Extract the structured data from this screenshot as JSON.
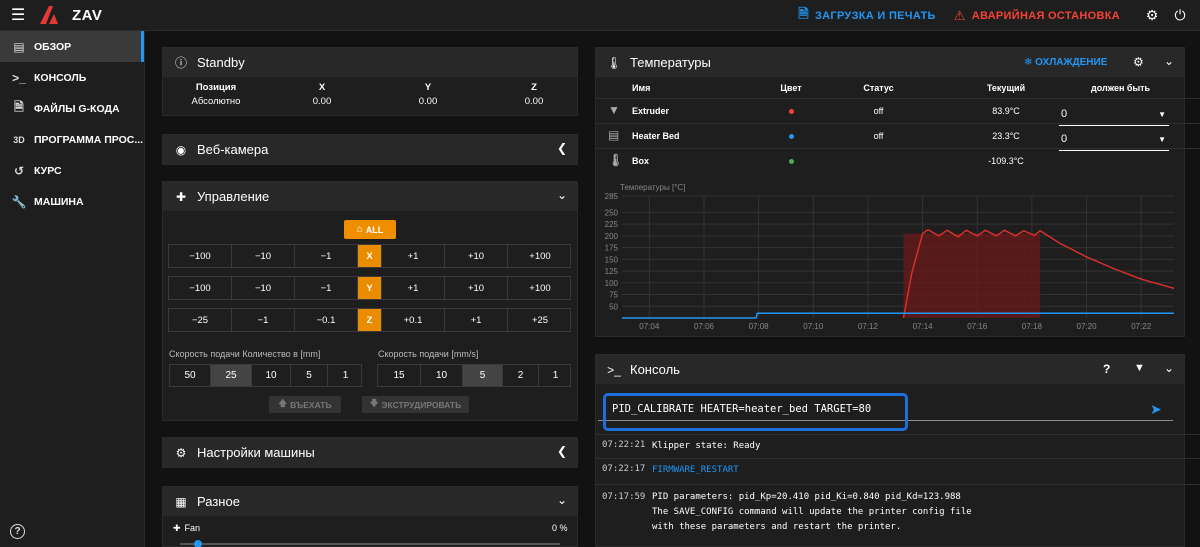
{
  "topbar": {
    "app_name": "ZAV",
    "upload_label": "ЗАГРУЗКА И ПЕЧАТЬ",
    "estop_label": "АВАРИЙНАЯ ОСТАНОВКА",
    "accent_blue": "#2196f3",
    "danger_red": "#f44336"
  },
  "sidebar": {
    "items": [
      {
        "label": "ОБЗОР",
        "icon": "monitor-icon",
        "active": true
      },
      {
        "label": "КОНСОЛЬ",
        "icon": "terminal-icon",
        "active": false
      },
      {
        "label": "ФАЙЛЫ G-КОДА",
        "icon": "file-icon",
        "active": false
      },
      {
        "label": "ПРОГРАММА ПРОС...",
        "icon": "3d-icon",
        "active": false
      },
      {
        "label": "КУРС",
        "icon": "history-icon",
        "active": false
      },
      {
        "label": "МАШИНА",
        "icon": "wrench-icon",
        "active": false
      }
    ]
  },
  "standby": {
    "title": "Standby",
    "headers": [
      "Позиция",
      "X",
      "Y",
      "Z"
    ],
    "row_label": "Абсолютно",
    "values": [
      "0.00",
      "0.00",
      "0.00"
    ]
  },
  "webcam": {
    "title": "Веб-камера"
  },
  "control": {
    "title": "Управление",
    "home_label": "ALL",
    "rows": [
      {
        "axis": "X",
        "cells": [
          "−100",
          "−10",
          "−1",
          "+1",
          "+10",
          "+100"
        ]
      },
      {
        "axis": "Y",
        "cells": [
          "−100",
          "−10",
          "−1",
          "+1",
          "+10",
          "+100"
        ]
      },
      {
        "axis": "Z",
        "cells": [
          "−25",
          "−1",
          "−0.1",
          "+0.1",
          "+1",
          "+25"
        ]
      }
    ],
    "feed_label_left": "Скорость подачи Количество в [mm]",
    "feed_label_right": "Скорость подачи [mm/s]",
    "amounts": [
      "50",
      "25",
      "10",
      "5",
      "1"
    ],
    "amount_selected": "25",
    "speeds": [
      "15",
      "10",
      "5",
      "2",
      "1"
    ],
    "speed_selected": "5",
    "retract_label": "ВЪЕХАТЬ",
    "extrude_label": "ЭКСТРУДИРОВАТЬ"
  },
  "machine_settings": {
    "title": "Настройки машины"
  },
  "misc": {
    "title": "Разное",
    "fan_label": "Fan",
    "fan_value": "0 %"
  },
  "temperatures": {
    "title": "Температуры",
    "cooling_label": "ОХЛАЖДЕНИЕ",
    "headers": [
      "Имя",
      "Цвет",
      "Статус",
      "Текущий",
      "должен быть"
    ],
    "rows": [
      {
        "name": "Extruder",
        "color": "#f44336",
        "status": "off",
        "current": "83.9°C",
        "target": "0"
      },
      {
        "name": "Heater Bed",
        "color": "#2196f3",
        "status": "off",
        "current": "23.3°C",
        "target": "0"
      },
      {
        "name": "Box",
        "color": "#4caf50",
        "status": "",
        "current": "-109.3°C",
        "target": ""
      }
    ]
  },
  "chart_data": {
    "type": "line",
    "title": "Температуры [°C]",
    "ylim": [
      0,
      285
    ],
    "yticks": [
      50,
      75,
      100,
      125,
      150,
      175,
      200,
      225,
      250,
      285
    ],
    "xticks": [
      "07:04",
      "07:06",
      "07:08",
      "07:10",
      "07:12",
      "07:14",
      "07:16",
      "07:18",
      "07:20",
      "07:22"
    ],
    "xlim_minutes": [
      3,
      23.2
    ],
    "grid": true,
    "target_band": {
      "from_minutes": 13.3,
      "to_minutes": 18.3,
      "ymax": 205
    },
    "series": [
      {
        "color": "#d32f2f",
        "points": [
          [
            13.3,
            20
          ],
          [
            13.6,
            120
          ],
          [
            14.0,
            205
          ],
          [
            14.2,
            213
          ],
          [
            14.6,
            200
          ],
          [
            14.9,
            212
          ],
          [
            15.3,
            198
          ],
          [
            15.6,
            212
          ],
          [
            16.0,
            200
          ],
          [
            16.3,
            212
          ],
          [
            16.7,
            200
          ],
          [
            17.0,
            212
          ],
          [
            17.4,
            200
          ],
          [
            17.7,
            211
          ],
          [
            18.1,
            201
          ],
          [
            18.3,
            211
          ],
          [
            19.0,
            185
          ],
          [
            20.0,
            155
          ],
          [
            21.0,
            130
          ],
          [
            22.0,
            108
          ],
          [
            23.2,
            88
          ]
        ]
      },
      {
        "color": "#2196f3",
        "points": [
          [
            3,
            23
          ],
          [
            7.9,
            23
          ],
          [
            7.95,
            35
          ],
          [
            23.2,
            35
          ]
        ]
      }
    ]
  },
  "console": {
    "title": "Консоль",
    "command": "PID_CALIBRATE HEATER=heater_bed TARGET=80",
    "logs": [
      {
        "time": "07:22:21",
        "lines": [
          "Klipper state: Ready"
        ],
        "link": false
      },
      {
        "time": "07:22:17",
        "lines": [
          "FIRMWARE_RESTART"
        ],
        "link": true
      },
      {
        "time": "07:17:59",
        "lines": [
          "PID parameters: pid_Kp=20.410 pid_Ki=0.840 pid_Kd=123.988",
          "The SAVE_CONFIG command will update the printer config file",
          "with these parameters and restart the printer."
        ],
        "link": false
      }
    ]
  }
}
